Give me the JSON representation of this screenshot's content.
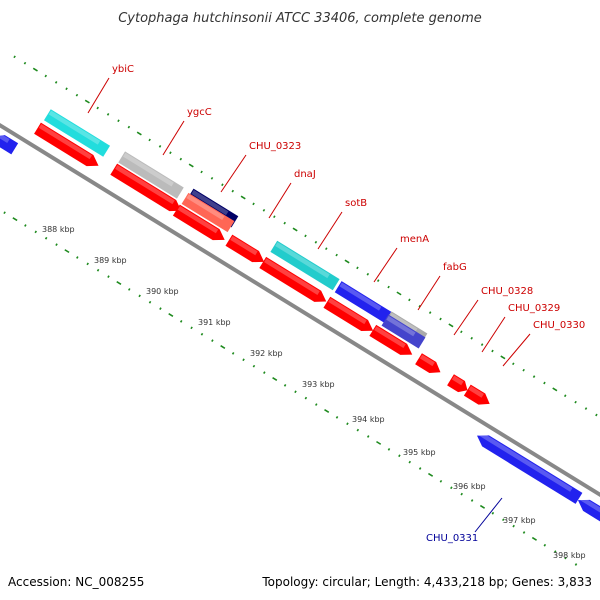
{
  "title": "Cytophaga hutchinsonii ATCC 33406, complete genome",
  "accession_text": "Accession: NC_008255",
  "summary_text": "Topology: circular; Length: 4,433,218 bp; Genes: 3,833",
  "colors": {
    "backbone": "#888888",
    "ticks": "#1e8a1e",
    "forward_label": "#cc0000",
    "reverse_label": "#000099"
  },
  "scale_ticks": [
    "388 kbp",
    "389 kbp",
    "390 kbp",
    "391 kbp",
    "392 kbp",
    "393 kbp",
    "394 kbp",
    "395 kbp",
    "396 kbp",
    "397 kbp",
    "398 kbp"
  ],
  "gene_labels": [
    {
      "name": "ybiC",
      "strand": "forward"
    },
    {
      "name": "ygcC",
      "strand": "forward"
    },
    {
      "name": "CHU_0323",
      "strand": "forward"
    },
    {
      "name": "dnaJ",
      "strand": "forward"
    },
    {
      "name": "sotB",
      "strand": "forward"
    },
    {
      "name": "menA",
      "strand": "forward"
    },
    {
      "name": "fabG",
      "strand": "forward"
    },
    {
      "name": "CHU_0328",
      "strand": "forward"
    },
    {
      "name": "CHU_0329",
      "strand": "forward"
    },
    {
      "name": "CHU_0330",
      "strand": "forward"
    },
    {
      "name": "CHU_0331",
      "strand": "reverse"
    }
  ]
}
